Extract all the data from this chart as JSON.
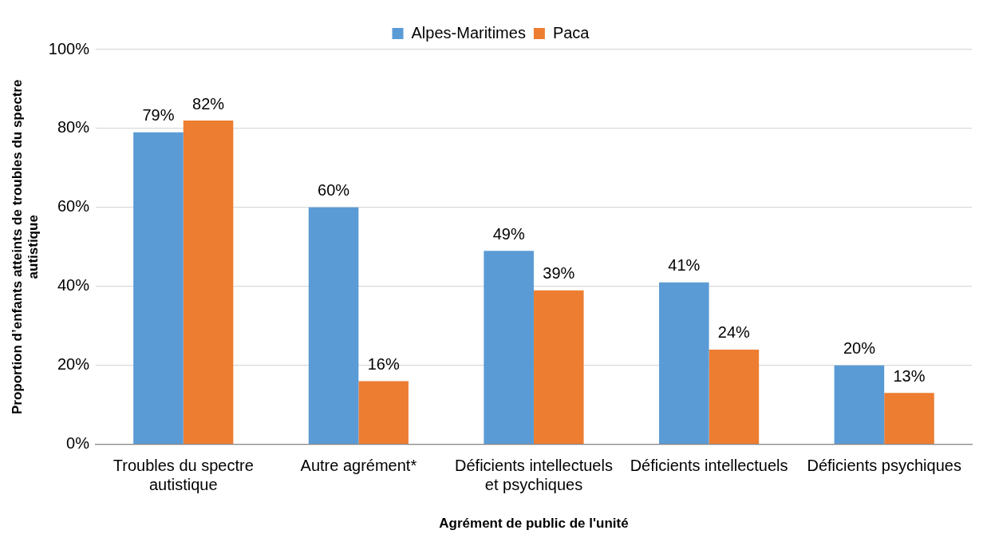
{
  "chart_data": {
    "type": "bar",
    "xlabel": "Agrément de public de l'unité",
    "ylabel": "Proportion d’enfants atteints de troubles du spectre autistique",
    "categories": [
      "Troubles du spectre autistique",
      "Autre agrément*",
      "Déficients intellectuels et psychiques",
      "Déficients intellectuels",
      "Déficients psychiques"
    ],
    "series": [
      {
        "name": "Alpes-Maritimes",
        "color": "#5b9bd5",
        "values": [
          79,
          60,
          49,
          41,
          20
        ],
        "value_labels": [
          "79%",
          "60%",
          "49%",
          "41%",
          "20%"
        ]
      },
      {
        "name": "Paca",
        "color": "#ed7d31",
        "values": [
          82,
          16,
          39,
          24,
          13
        ],
        "value_labels": [
          "82%",
          "16%",
          "39%",
          "24%",
          "13%"
        ]
      }
    ],
    "ylim": [
      0,
      100
    ],
    "yticks": [
      {
        "value": 0,
        "label": "0%"
      },
      {
        "value": 20,
        "label": "20%"
      },
      {
        "value": 40,
        "label": "40%"
      },
      {
        "value": 60,
        "label": "60%"
      },
      {
        "value": 80,
        "label": "80%"
      },
      {
        "value": 100,
        "label": "100%"
      }
    ],
    "grid": "y",
    "legend": "top"
  }
}
